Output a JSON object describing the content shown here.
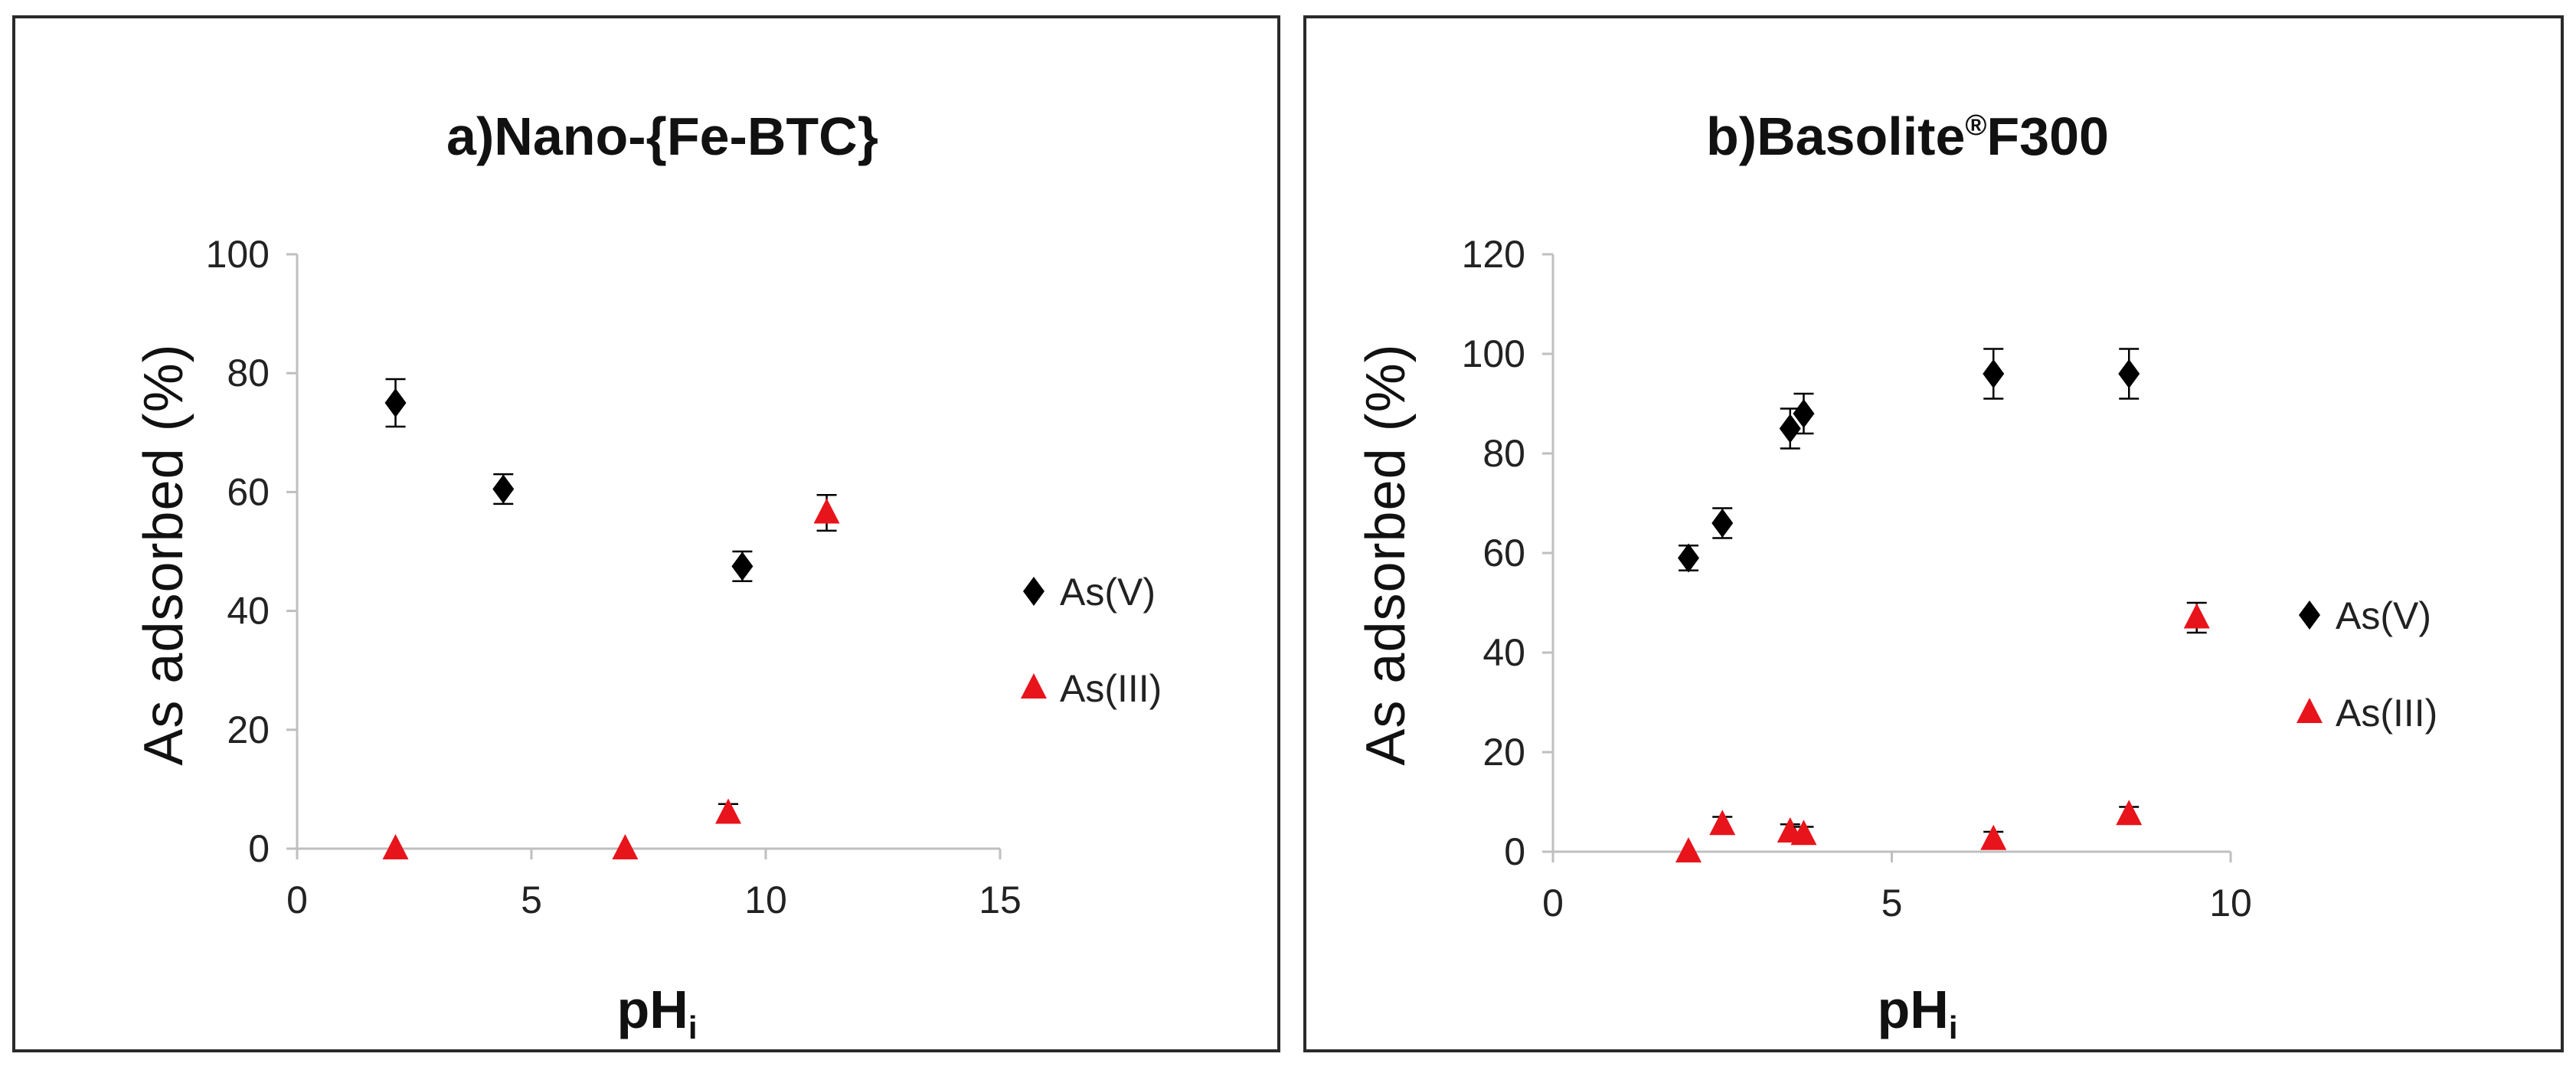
{
  "chart_data": [
    {
      "type": "scatter",
      "title_prefix": "a)",
      "title": "Nano-{Fe-BTC}",
      "xlabel": "pH",
      "xlabel_sub": "i",
      "ylabel": "As adsorbed  (%)",
      "xlim": [
        0,
        15
      ],
      "ylim": [
        0,
        100
      ],
      "xticks": [
        "0",
        "5",
        "10",
        "15"
      ],
      "yticks": [
        "0",
        "20",
        "40",
        "60",
        "80",
        "100"
      ],
      "series": [
        {
          "name": "As(V)",
          "marker": "diamond",
          "color": "#000000",
          "points": [
            {
              "x": 2.1,
              "y": 75,
              "err": 4
            },
            {
              "x": 4.4,
              "y": 60.5,
              "err": 2.5
            },
            {
              "x": 9.5,
              "y": 47.5,
              "err": 2.5
            }
          ]
        },
        {
          "name": "As(III)",
          "marker": "triangle",
          "color": "#e8141b",
          "points": [
            {
              "x": 2.1,
              "y": 0,
              "err": 0
            },
            {
              "x": 7.0,
              "y": 0,
              "err": 0
            },
            {
              "x": 9.2,
              "y": 6,
              "err": 1.5
            },
            {
              "x": 11.3,
              "y": 56.5,
              "err": 3
            }
          ]
        }
      ]
    },
    {
      "type": "scatter",
      "title_prefix": "b)",
      "title": "Basolite",
      "title_sup": "®",
      "title_suffix": "F300",
      "xlabel": "pH",
      "xlabel_sub": "i",
      "ylabel": "As adsorbed  (%)",
      "xlim": [
        0,
        10
      ],
      "ylim": [
        0,
        120
      ],
      "xticks": [
        "0",
        "5",
        "10"
      ],
      "yticks": [
        "0",
        "20",
        "40",
        "60",
        "80",
        "100",
        "120"
      ],
      "series": [
        {
          "name": "As(V)",
          "marker": "diamond",
          "color": "#000000",
          "points": [
            {
              "x": 2.0,
              "y": 59,
              "err": 2.5
            },
            {
              "x": 2.5,
              "y": 66,
              "err": 3
            },
            {
              "x": 3.5,
              "y": 85,
              "err": 4
            },
            {
              "x": 3.7,
              "y": 88,
              "err": 4
            },
            {
              "x": 6.5,
              "y": 96,
              "err": 5
            },
            {
              "x": 8.5,
              "y": 96,
              "err": 5
            }
          ]
        },
        {
          "name": "As(III)",
          "marker": "triangle",
          "color": "#e8141b",
          "points": [
            {
              "x": 2.0,
              "y": 0,
              "err": 0
            },
            {
              "x": 2.5,
              "y": 5.5,
              "err": 1.5
            },
            {
              "x": 3.5,
              "y": 4,
              "err": 1.5
            },
            {
              "x": 3.7,
              "y": 3.5,
              "err": 1.5
            },
            {
              "x": 6.5,
              "y": 2.5,
              "err": 1.5
            },
            {
              "x": 8.5,
              "y": 7.5,
              "err": 1.5
            },
            {
              "x": 9.5,
              "y": 47,
              "err": 3
            }
          ]
        }
      ]
    }
  ]
}
